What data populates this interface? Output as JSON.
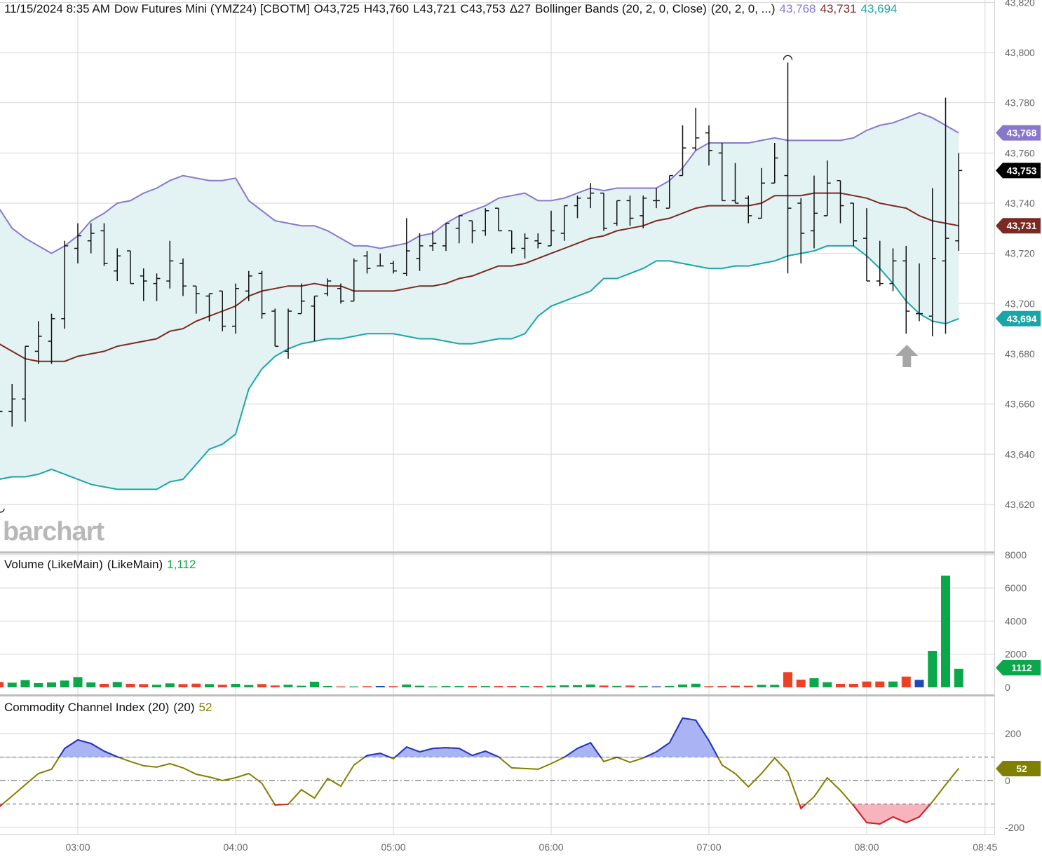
{
  "header": {
    "datetime": "11/15/2024 8:35 AM",
    "instrument": "Dow Futures Mini (YMZ24) [CBOTM]",
    "open": "O43,725",
    "high": "H43,760",
    "low": "L43,721",
    "close": "C43,753",
    "change": "Δ27",
    "study": "Bollinger Bands (20, 2, 0, Close)",
    "study_params": "(20, 2, 0, ...)",
    "upper_value": "43,768",
    "middle_value": "43,731",
    "lower_value": "43,694"
  },
  "watermark": "barchart",
  "colors": {
    "upper": "#8878cc",
    "middle": "#7a2a22",
    "lower": "#1aa6a6",
    "band_fill": "#e3f3f4",
    "bar": "#111111",
    "up_volume": "#0aa84a",
    "down_volume": "#ee4123",
    "unchanged_volume": "#1f49b8",
    "cci_line": "#808000",
    "cci_overbought_line": "#2233cc",
    "cci_overbought_fill": "#aab4f5",
    "cci_oversold_line": "#e0192c",
    "cci_oversold_fill": "#f7b4bd",
    "last_price_tag": "#000000"
  },
  "price_axis": {
    "ticks": [
      "43,620",
      "43,640",
      "43,660",
      "43,680",
      "43,700",
      "43,720",
      "43,740",
      "43,760",
      "43,780",
      "43,800",
      "43,820"
    ],
    "tags": {
      "upper": "43,768",
      "last": "43,753",
      "middle": "43,731",
      "lower": "43,694"
    }
  },
  "time_axis": {
    "ticks": [
      "03:00",
      "04:00",
      "05:00",
      "06:00",
      "07:00",
      "08:00",
      "08:45"
    ]
  },
  "volume_panel": {
    "title": "Volume (LikeMain)",
    "params": "(LikeMain)",
    "value": "1,112",
    "ticks": [
      "0",
      "2000",
      "4000",
      "6000",
      "8000"
    ],
    "tag": "1112"
  },
  "cci_panel": {
    "title": "Commodity Channel Index (20)",
    "params": "(20)",
    "value": "52",
    "ticks": [
      "-200",
      "0",
      "200"
    ],
    "levels": [
      -100,
      0,
      100
    ],
    "tag": "52"
  },
  "chart_data": {
    "type": "ohlc",
    "interval": "5 min",
    "ylim": [
      43605,
      43822
    ],
    "grid": true,
    "times": [
      "02:30",
      "02:35",
      "02:40",
      "02:45",
      "02:50",
      "02:55",
      "03:00",
      "03:05",
      "03:10",
      "03:15",
      "03:20",
      "03:25",
      "03:30",
      "03:35",
      "03:40",
      "03:45",
      "03:50",
      "03:55",
      "04:00",
      "04:05",
      "04:10",
      "04:15",
      "04:20",
      "04:25",
      "04:30",
      "04:35",
      "04:40",
      "04:45",
      "04:50",
      "04:55",
      "05:00",
      "05:05",
      "05:10",
      "05:15",
      "05:20",
      "05:25",
      "05:30",
      "05:35",
      "05:40",
      "05:45",
      "05:50",
      "05:55",
      "06:00",
      "06:05",
      "06:10",
      "06:15",
      "06:20",
      "06:25",
      "06:30",
      "06:35",
      "06:40",
      "06:45",
      "06:50",
      "06:55",
      "07:00",
      "07:05",
      "07:10",
      "07:15",
      "07:20",
      "07:25",
      "07:30",
      "07:35",
      "07:40",
      "07:45",
      "07:50",
      "07:55",
      "08:00",
      "08:05",
      "08:10",
      "08:15",
      "08:20",
      "08:25",
      "08:30",
      "08:35"
    ],
    "ohlc": [
      [
        43660,
        43665,
        43652,
        43657
      ],
      [
        43657,
        43668,
        43651,
        43662
      ],
      [
        43662,
        43683,
        43653,
        43683
      ],
      [
        43681,
        43693,
        43676,
        43687
      ],
      [
        43685,
        43696,
        43676,
        43694
      ],
      [
        43694,
        43725,
        43690,
        43723
      ],
      [
        43722,
        43732,
        43716,
        43727
      ],
      [
        43725,
        43732,
        43720,
        43728
      ],
      [
        43729,
        43732,
        43715,
        43716
      ],
      [
        43713,
        43722,
        43709,
        43719
      ],
      [
        43721,
        43721,
        43708,
        43708
      ],
      [
        43711,
        43714,
        43701,
        43709
      ],
      [
        43708,
        43712,
        43701,
        43710
      ],
      [
        43709,
        43725,
        43706,
        43717
      ],
      [
        43716,
        43718,
        43703,
        43707
      ],
      [
        43707,
        43707,
        43696,
        43704
      ],
      [
        43703,
        43704,
        43693,
        43704
      ],
      [
        43705,
        43705,
        43689,
        43691
      ],
      [
        43691,
        43708,
        43688,
        43706
      ],
      [
        43705,
        43713,
        43701,
        43711
      ],
      [
        43712,
        43713,
        43694,
        43696
      ],
      [
        43697,
        43698,
        43683,
        43683
      ],
      [
        43681,
        43698,
        43678,
        43697
      ],
      [
        43696,
        43708,
        43696,
        43701
      ],
      [
        43699,
        43703,
        43685,
        43703
      ],
      [
        43704,
        43710,
        43703,
        43709
      ],
      [
        43706,
        43708,
        43700,
        43701
      ],
      [
        43701,
        43718,
        43701,
        43717
      ],
      [
        43719,
        43721,
        43712,
        43714
      ],
      [
        43715,
        43720,
        43715,
        43715
      ],
      [
        43716,
        43717,
        43712,
        43713
      ],
      [
        43712,
        43734,
        43711,
        43721
      ],
      [
        43718,
        43728,
        43713,
        43723
      ],
      [
        43723,
        43729,
        43721,
        43724
      ],
      [
        43723,
        43732,
        43721,
        43732
      ],
      [
        43730,
        43735,
        43724,
        43735
      ],
      [
        43733,
        43733,
        43724,
        43729
      ],
      [
        43729,
        43738,
        43727,
        43737
      ],
      [
        43738,
        43738,
        43729,
        43729
      ],
      [
        43729,
        43729,
        43720,
        43722
      ],
      [
        43722,
        43728,
        43718,
        43726
      ],
      [
        43725,
        43728,
        43722,
        43724
      ],
      [
        43723,
        43737,
        43723,
        43729
      ],
      [
        43728,
        43739,
        43725,
        43739
      ],
      [
        43739,
        43743,
        43734,
        43742
      ],
      [
        43742,
        43748,
        43738,
        43744
      ],
      [
        43744,
        43744,
        43729,
        43730
      ],
      [
        43732,
        43741,
        43731,
        43741
      ],
      [
        43741,
        43743,
        43731,
        43734
      ],
      [
        43735,
        43743,
        43730,
        43742
      ],
      [
        43741,
        43746,
        43738,
        43741
      ],
      [
        43738,
        43751,
        43738,
        43751
      ],
      [
        43751,
        43771,
        43751,
        43762
      ],
      [
        43762,
        43778,
        43761,
        43766
      ],
      [
        43768,
        43771,
        43755,
        43761
      ],
      [
        43760,
        43764,
        43741,
        43741
      ],
      [
        43741,
        43756,
        43740,
        43740
      ],
      [
        43742,
        43743,
        43732,
        43735
      ],
      [
        43734,
        43754,
        43734,
        43748
      ],
      [
        43748,
        43764,
        43748,
        43758
      ],
      [
        43751,
        43796,
        43712,
        43738
      ],
      [
        43740,
        43742,
        43716,
        43728
      ],
      [
        43729,
        43751,
        43722,
        43736
      ],
      [
        43735,
        43757,
        43735,
        43748
      ],
      [
        43749,
        43749,
        43732,
        43739
      ],
      [
        43740,
        43740,
        43723,
        43725
      ],
      [
        43726,
        43738,
        43709,
        43709
      ],
      [
        43709,
        43725,
        43707,
        43708
      ],
      [
        43708,
        43722,
        43705,
        43717
      ],
      [
        43717,
        43723,
        43688,
        43697
      ],
      [
        43696,
        43716,
        43693,
        43696
      ],
      [
        43695,
        43746,
        43687,
        43718
      ],
      [
        43717,
        43782,
        43688,
        43726
      ],
      [
        43725,
        43760,
        43721,
        43753
      ]
    ],
    "bollinger": {
      "upper": [
        43738,
        43730,
        43726,
        43723,
        43720,
        43723,
        43727,
        43733,
        43736,
        43740,
        43741,
        43744,
        43746,
        43749,
        43751,
        43750,
        43749,
        43749,
        43750,
        43741,
        43737,
        43733,
        43732,
        43731,
        43731,
        43729,
        43726,
        43723,
        43723,
        43722,
        43723,
        43724,
        43727,
        43728,
        43732,
        43735,
        43737,
        43739,
        43742,
        43743,
        43744,
        43741,
        43741,
        43742,
        43744,
        43746,
        43745,
        43746,
        43746,
        43746,
        43746,
        43749,
        43754,
        43761,
        43764,
        43764,
        43764,
        43764,
        43765,
        43766,
        43765,
        43765,
        43765,
        43765,
        43765,
        43766,
        43769,
        43771,
        43772,
        43774,
        43776,
        43774,
        43771,
        43768
      ],
      "middle": [
        43684,
        43681,
        43678,
        43677,
        43677,
        43677,
        43679,
        43680,
        43681,
        43683,
        43684,
        43685,
        43686,
        43689,
        43690,
        43693,
        43695,
        43697,
        43699,
        43703,
        43705,
        43706,
        43707,
        43707,
        43708,
        43707,
        43707,
        43705,
        43705,
        43705,
        43705,
        43706,
        43707,
        43707,
        43708,
        43710,
        43711,
        43713,
        43715,
        43715,
        43716,
        43718,
        43720,
        43722,
        43724,
        43726,
        43727,
        43729,
        43730,
        43731,
        43733,
        43734,
        43736,
        43738,
        43739,
        43739,
        43739,
        43739,
        43740,
        43743,
        43743,
        43743,
        43744,
        43744,
        43744,
        43743,
        43742,
        43740,
        43739,
        43738,
        43735,
        43733,
        43732,
        43731
      ],
      "lower": [
        43630,
        43631,
        43631,
        43632,
        43634,
        43632,
        43630,
        43628,
        43627,
        43626,
        43626,
        43626,
        43626,
        43629,
        43630,
        43636,
        43642,
        43644,
        43648,
        43666,
        43674,
        43679,
        43682,
        43684,
        43685,
        43686,
        43686,
        43687,
        43688,
        43688,
        43688,
        43687,
        43686,
        43686,
        43685,
        43684,
        43684,
        43685,
        43686,
        43686,
        43688,
        43695,
        43699,
        43701,
        43703,
        43705,
        43710,
        43710,
        43712,
        43714,
        43717,
        43717,
        43716,
        43715,
        43714,
        43714,
        43715,
        43715,
        43716,
        43717,
        43719,
        43720,
        43721,
        43723,
        43723,
        43723,
        43719,
        43714,
        43708,
        43701,
        43696,
        43693,
        43692,
        43694
      ]
    },
    "volume": {
      "ylim": [
        0,
        8000
      ],
      "values": [
        325,
        280,
        437,
        254,
        296,
        410,
        620,
        296,
        212,
        325,
        212,
        197,
        155,
        240,
        197,
        225,
        197,
        155,
        212,
        140,
        197,
        113,
        155,
        99,
        340,
        85,
        56,
        56,
        70,
        85,
        70,
        170,
        100,
        60,
        80,
        80,
        80,
        80,
        80,
        80,
        80,
        80,
        100,
        120,
        130,
        170,
        110,
        90,
        110,
        80,
        60,
        90,
        170,
        220,
        70,
        80,
        100,
        100,
        150,
        150,
        917,
        465,
        550,
        310,
        212,
        212,
        352,
        352,
        352,
        649,
        451,
        2200,
        6740,
        1112
      ]
    },
    "cci": {
      "ylim": [
        -200,
        200
      ],
      "values": [
        -113,
        -66,
        -18,
        30,
        48,
        137,
        173,
        158,
        125,
        101,
        81,
        63,
        57,
        72,
        54,
        27,
        15,
        0,
        12,
        30,
        -12,
        -104,
        -101,
        -39,
        -75,
        9,
        -24,
        66,
        107,
        116,
        93,
        143,
        122,
        137,
        140,
        137,
        107,
        125,
        101,
        54,
        51,
        48,
        72,
        99,
        137,
        161,
        81,
        99,
        78,
        96,
        122,
        161,
        266,
        257,
        170,
        66,
        30,
        -27,
        30,
        96,
        36,
        -119,
        -69,
        12,
        -42,
        -107,
        -179,
        -185,
        -155,
        -179,
        -155,
        -90,
        -18,
        52
      ]
    }
  }
}
